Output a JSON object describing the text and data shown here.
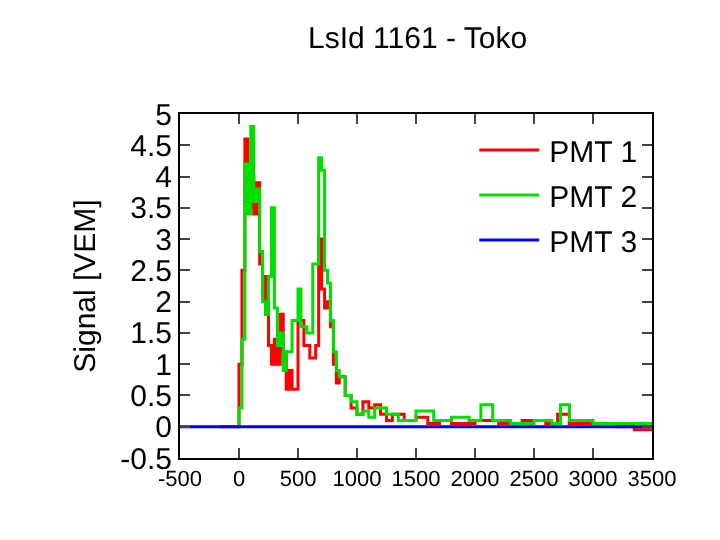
{
  "chart_data": {
    "type": "step",
    "title": "LsId 1161 - Toko",
    "ylabel": "Signal [VEM]",
    "xlim": [
      -500,
      3500
    ],
    "xticks": [
      -500,
      0,
      500,
      1000,
      1500,
      2000,
      2500,
      3000,
      3500
    ],
    "ylim": [
      -0.5,
      5
    ],
    "yticks": [
      -0.5,
      0,
      0.5,
      1,
      1.5,
      2,
      2.5,
      3,
      3.5,
      4,
      4.5,
      5
    ],
    "legend": "top right",
    "marker": "none",
    "line_style": "solid",
    "series": [
      {
        "name": "PMT 1",
        "color": "#ff0000",
        "x": [
          -175,
          -150,
          0,
          25,
          50,
          75,
          100,
          125,
          150,
          175,
          200,
          225,
          250,
          275,
          300,
          325,
          350,
          375,
          400,
          425,
          450,
          500,
          550,
          600,
          650,
          675,
          700,
          725,
          750,
          775,
          800,
          825,
          850,
          900,
          950,
          1000,
          1050,
          1100,
          1150,
          1200,
          1250,
          1300,
          1400,
          1500,
          1600,
          1700,
          1800,
          2000,
          2200,
          2400,
          2600,
          2700,
          2800,
          3000,
          3200,
          3350,
          3500
        ],
        "values": [
          0,
          0,
          1.0,
          2.5,
          4.6,
          3.5,
          4.0,
          3.4,
          3.9,
          2.6,
          2.4,
          1.8,
          1.3,
          1.0,
          1.4,
          1.0,
          1.8,
          1.2,
          0.6,
          0.9,
          0.6,
          1.7,
          1.3,
          1.1,
          1.3,
          3.0,
          2.2,
          1.9,
          2.0,
          1.6,
          1.0,
          0.7,
          0.8,
          0.5,
          0.3,
          0.2,
          0.4,
          0.3,
          0.35,
          0.2,
          0.1,
          0.2,
          0.1,
          0.15,
          0.05,
          0.1,
          0.05,
          0.1,
          0.05,
          0.1,
          0.05,
          0.2,
          0.05,
          0.05,
          0,
          -0.05,
          -0.05
        ]
      },
      {
        "name": "PMT 2",
        "color": "#00dd00",
        "x": [
          -25,
          0,
          25,
          50,
          75,
          100,
          125,
          150,
          175,
          200,
          225,
          250,
          275,
          300,
          325,
          350,
          375,
          400,
          450,
          500,
          525,
          575,
          625,
          675,
          700,
          725,
          750,
          775,
          800,
          825,
          850,
          900,
          950,
          1000,
          1050,
          1100,
          1150,
          1250,
          1350,
          1500,
          1650,
          1800,
          1950,
          2050,
          2150,
          2300,
          2500,
          2650,
          2725,
          2800,
          3000,
          3200,
          3500
        ],
        "values": [
          0,
          0.3,
          1.4,
          4.2,
          3.4,
          4.8,
          3.6,
          3.8,
          2.8,
          2.0,
          1.8,
          2.4,
          3.5,
          1.9,
          1.3,
          1.5,
          0.9,
          1.2,
          1.7,
          2.2,
          1.6,
          1.5,
          2.6,
          4.3,
          4.1,
          2.5,
          2.3,
          1.7,
          1.2,
          0.9,
          0.8,
          0.5,
          0.4,
          0.2,
          0.25,
          0.15,
          0.3,
          0.2,
          0.1,
          0.25,
          0.1,
          0.15,
          0.1,
          0.35,
          0.1,
          0.05,
          0.1,
          0.05,
          0.35,
          0.1,
          0.05,
          0.05,
          0
        ]
      },
      {
        "name": "PMT 3",
        "color": "#0000ff",
        "x": [
          -500,
          3500
        ],
        "values": [
          0,
          0
        ]
      }
    ]
  }
}
